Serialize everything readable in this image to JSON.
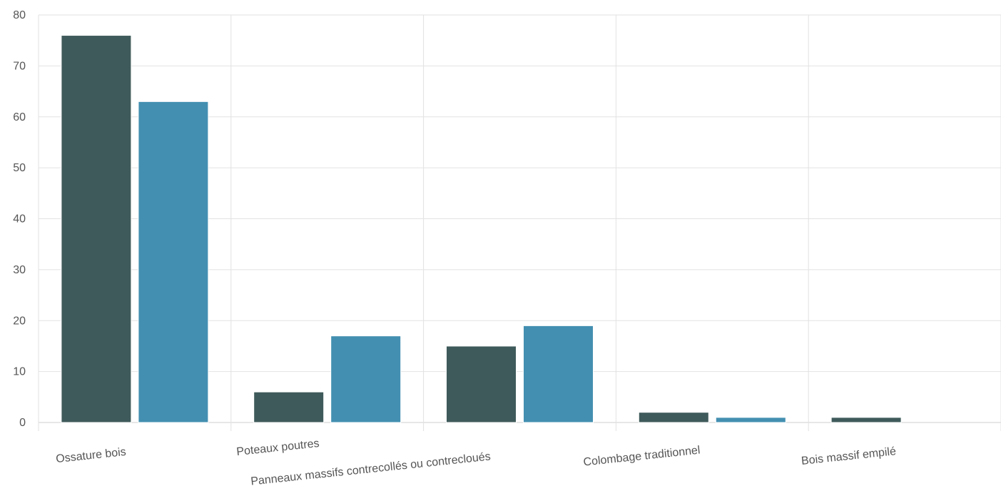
{
  "chart_data": {
    "type": "bar",
    "categories": [
      "Ossature bois",
      "Poteaux poutres",
      "Panneaux massifs contrecollés ou contrecloués",
      "Colombage traditionnel",
      "Bois massif empilé"
    ],
    "series": [
      {
        "values": [
          76,
          6,
          15,
          2,
          1
        ],
        "color": "#3f5a5a"
      },
      {
        "values": [
          63,
          17,
          19,
          1,
          0
        ],
        "color": "#438fb1"
      }
    ],
    "ylim": [
      0,
      80
    ],
    "yticks": [
      0,
      10,
      20,
      30,
      40,
      50,
      60,
      70,
      80
    ],
    "grid": true
  }
}
